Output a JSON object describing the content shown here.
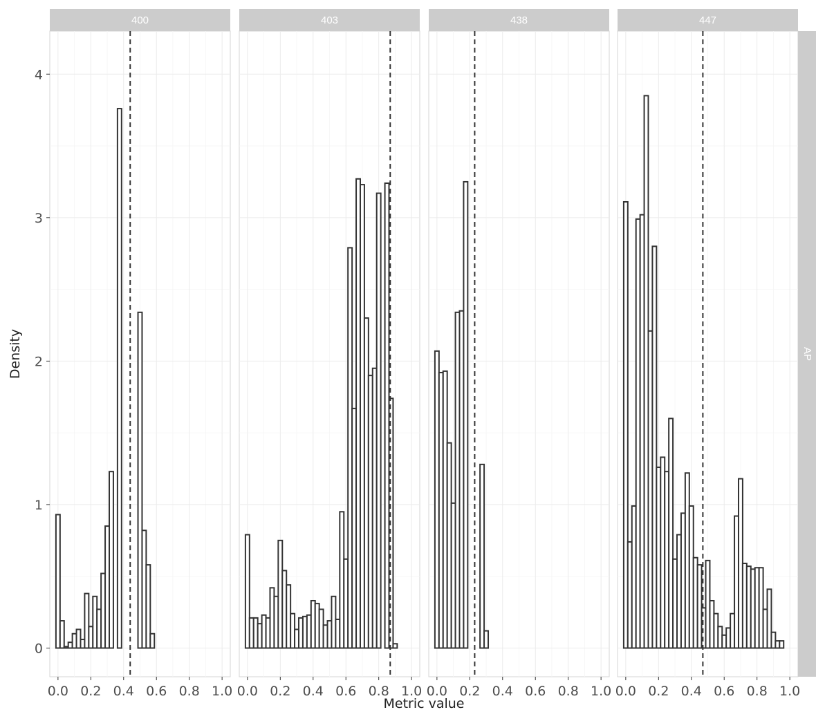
{
  "chart_data": {
    "type": "bar",
    "title": "",
    "xlabel": "Metric value",
    "ylabel": "Density",
    "row_strip": "AP",
    "xlim": [
      -0.05,
      1.05
    ],
    "ylim": [
      -0.2,
      4.3
    ],
    "x_ticks": [
      0,
      0.2,
      0.4,
      0.6,
      0.8,
      1
    ],
    "x_tick_labels": [
      "0.0",
      "0.2",
      "0.4",
      "0.6",
      "0.8",
      "1.0"
    ],
    "y_ticks": [
      0,
      1,
      2,
      3,
      4
    ],
    "y_tick_labels": [
      "0",
      "1",
      "2",
      "3",
      "4"
    ],
    "bin_width": 0.025,
    "bin_start": -0.0125,
    "grid": true,
    "facets": [
      {
        "label": "400",
        "mean": 0.44,
        "values": [
          0.93,
          0.19,
          0.01,
          0.04,
          0.1,
          0.13,
          0.06,
          0.38,
          0.15,
          0.36,
          0.27,
          0.52,
          0.85,
          1.23,
          0,
          3.76,
          0,
          0,
          0,
          0,
          2.34,
          0.82,
          0.58,
          0.1,
          0,
          0,
          0,
          0,
          0,
          0,
          0,
          0,
          0,
          0,
          0,
          0,
          0,
          0,
          0,
          0,
          0
        ]
      },
      {
        "label": "403",
        "mean": 0.87,
        "values": [
          0.79,
          0.21,
          0.21,
          0.17,
          0.23,
          0.21,
          0.42,
          0.36,
          0.75,
          0.54,
          0.44,
          0.24,
          0.13,
          0.21,
          0.22,
          0.23,
          0.33,
          0.31,
          0.27,
          0.16,
          0.19,
          0.36,
          0.2,
          0.95,
          0.62,
          2.79,
          1.67,
          3.27,
          3.23,
          2.3,
          1.9,
          1.95,
          3.17,
          0,
          3.24,
          1.74,
          0.03,
          0,
          0,
          0,
          0
        ]
      },
      {
        "label": "438",
        "mean": 0.23,
        "values": [
          2.07,
          1.92,
          1.93,
          1.43,
          1.01,
          2.34,
          2.35,
          3.25,
          0,
          0,
          0,
          1.28,
          0.12,
          0,
          0,
          0,
          0,
          0,
          0,
          0,
          0,
          0,
          0,
          0,
          0,
          0,
          0,
          0,
          0,
          0,
          0,
          0,
          0,
          0,
          0,
          0,
          0,
          0,
          0,
          0,
          0
        ]
      },
      {
        "label": "447",
        "mean": 0.47,
        "values": [
          3.11,
          0.74,
          0.99,
          2.99,
          3.02,
          3.85,
          2.21,
          2.8,
          1.26,
          1.33,
          1.23,
          1.6,
          0.62,
          0.79,
          0.94,
          1.22,
          0.99,
          0.63,
          0.58,
          0.28,
          0.61,
          0.33,
          0.24,
          0.15,
          0.09,
          0.14,
          0.24,
          0.92,
          1.18,
          0.59,
          0.57,
          0.55,
          0.56,
          0.56,
          0.27,
          0.41,
          0.11,
          0.05,
          0.05,
          0,
          0
        ]
      }
    ]
  }
}
